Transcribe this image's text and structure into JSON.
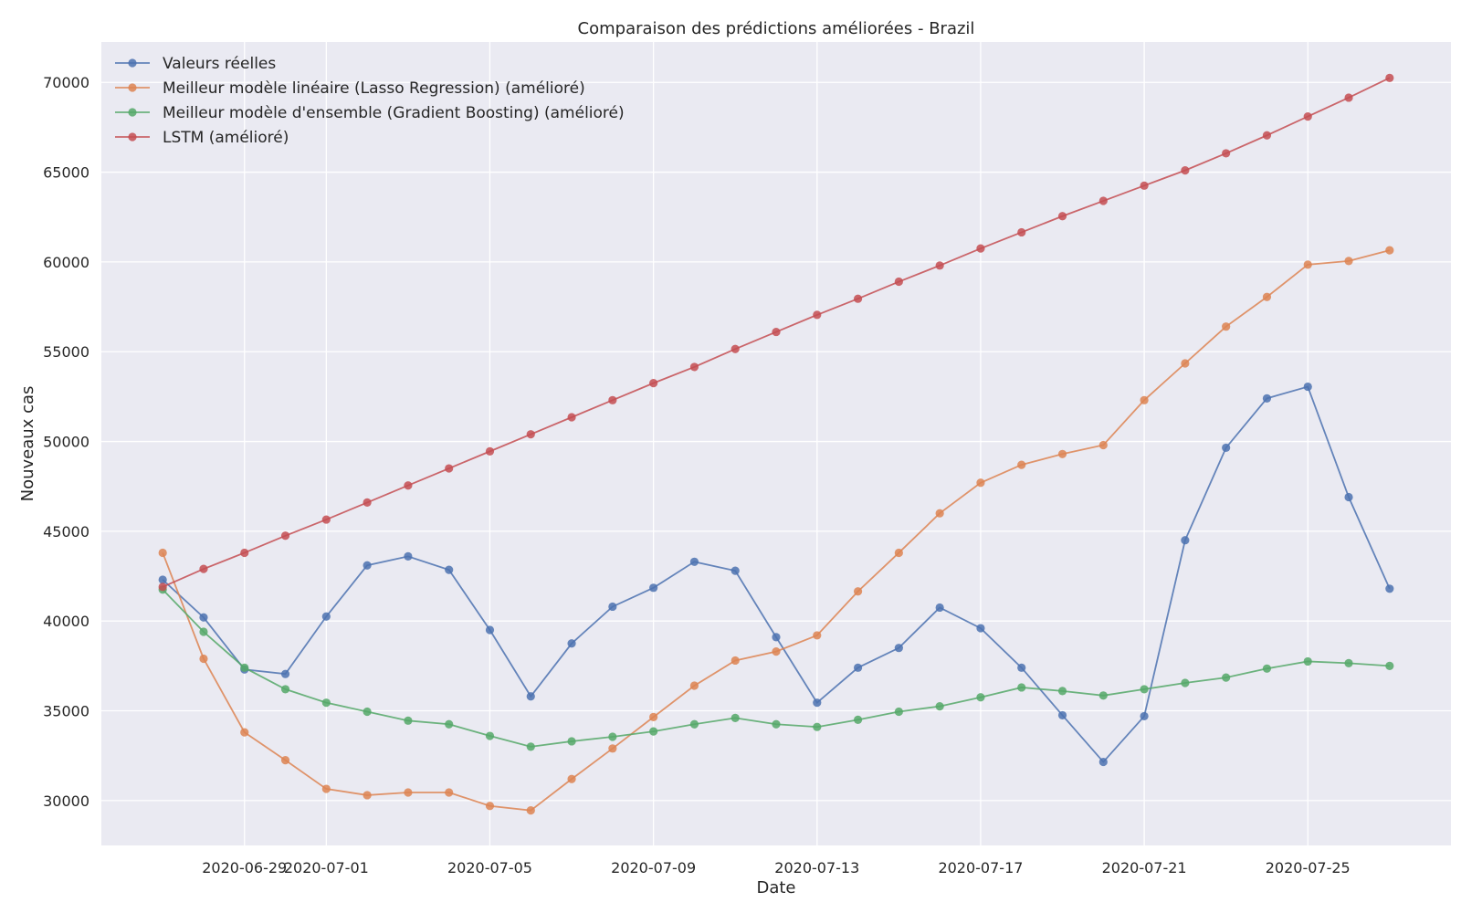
{
  "chart_data": {
    "type": "line",
    "title": "Comparaison des prédictions améliorées - Brazil",
    "xlabel": "Date",
    "ylabel": "Nouveaux cas",
    "x": [
      "2020-06-27",
      "2020-06-28",
      "2020-06-29",
      "2020-06-30",
      "2020-07-01",
      "2020-07-02",
      "2020-07-03",
      "2020-07-04",
      "2020-07-05",
      "2020-07-06",
      "2020-07-07",
      "2020-07-08",
      "2020-07-09",
      "2020-07-10",
      "2020-07-11",
      "2020-07-12",
      "2020-07-13",
      "2020-07-14",
      "2020-07-15",
      "2020-07-16",
      "2020-07-17",
      "2020-07-18",
      "2020-07-19",
      "2020-07-20",
      "2020-07-21",
      "2020-07-22",
      "2020-07-23",
      "2020-07-24",
      "2020-07-25",
      "2020-07-26",
      "2020-07-27"
    ],
    "xlim": [
      "2020-06-25T12:00",
      "2020-07-28T12:00"
    ],
    "ylim": [
      27500,
      72250
    ],
    "x_ticks": [
      "2020-06-29",
      "2020-07-01",
      "2020-07-05",
      "2020-07-09",
      "2020-07-13",
      "2020-07-17",
      "2020-07-21",
      "2020-07-25"
    ],
    "y_ticks": [
      30000,
      35000,
      40000,
      45000,
      50000,
      55000,
      60000,
      65000,
      70000
    ],
    "grid": true,
    "legend_position": "top-left",
    "series": [
      {
        "name": "Valeurs réelles",
        "color": "#4c72b0",
        "values": [
          42300,
          40200,
          37300,
          37050,
          40250,
          43100,
          43600,
          42850,
          39500,
          35800,
          38750,
          40800,
          41850,
          43300,
          42800,
          39100,
          35450,
          37400,
          38500,
          40750,
          39600,
          37400,
          34750,
          32150,
          34700,
          44500,
          49650,
          52400,
          53050,
          46900,
          41800
        ]
      },
      {
        "name": "Meilleur modèle linéaire (Lasso Regression) (amélioré)",
        "color": "#dd8452",
        "values": [
          43800,
          37900,
          33800,
          32250,
          30650,
          30300,
          30450,
          30450,
          29700,
          29450,
          31200,
          32900,
          34650,
          36400,
          37800,
          38300,
          39200,
          41650,
          43800,
          46000,
          47700,
          48700,
          49300,
          49800,
          52300,
          54350,
          56400,
          58050,
          59850,
          60050,
          60650
        ]
      },
      {
        "name": "Meilleur modèle d'ensemble (Gradient Boosting) (amélioré)",
        "color": "#55a868",
        "values": [
          41750,
          39400,
          37400,
          36200,
          35450,
          34950,
          34450,
          34250,
          33600,
          33000,
          33300,
          33550,
          33850,
          34250,
          34600,
          34250,
          34100,
          34500,
          34950,
          35250,
          35750,
          36300,
          36100,
          35850,
          36200,
          36550,
          36850,
          37350,
          37750,
          37650,
          37500
        ]
      },
      {
        "name": "LSTM (amélioré)",
        "color": "#c44e52",
        "values": [
          41900,
          42900,
          43800,
          44750,
          45650,
          46600,
          47550,
          48500,
          49450,
          50400,
          51350,
          52300,
          53250,
          54150,
          55150,
          56100,
          57050,
          57950,
          58900,
          59800,
          60750,
          61650,
          62550,
          63400,
          64250,
          65100,
          66050,
          67050,
          68100,
          69150,
          70250
        ]
      }
    ]
  }
}
